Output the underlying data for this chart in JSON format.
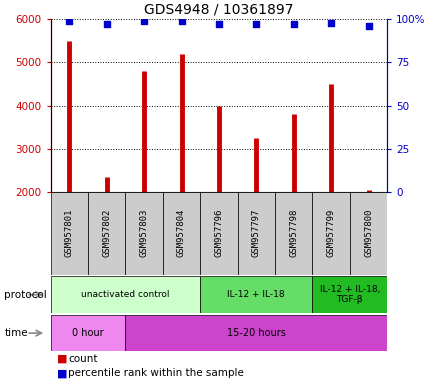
{
  "title": "GDS4948 / 10361897",
  "samples": [
    "GSM957801",
    "GSM957802",
    "GSM957803",
    "GSM957804",
    "GSM957796",
    "GSM957797",
    "GSM957798",
    "GSM957799",
    "GSM957800"
  ],
  "counts": [
    5500,
    2350,
    4800,
    5200,
    4000,
    3250,
    3800,
    4500,
    2050
  ],
  "percentile_ranks": [
    99,
    97,
    99,
    99,
    97,
    97,
    97,
    98,
    96
  ],
  "ylim_left": [
    2000,
    6000
  ],
  "ylim_right": [
    0,
    100
  ],
  "left_yticks": [
    2000,
    3000,
    4000,
    5000,
    6000
  ],
  "right_yticks": [
    0,
    25,
    50,
    75,
    100
  ],
  "bar_color": "#cc0000",
  "dot_color": "#0000cc",
  "grid_color": "#000000",
  "protocol_groups": [
    {
      "label": "unactivated control",
      "start": 0,
      "end": 4,
      "color": "#ccffcc"
    },
    {
      "label": "IL-12 + IL-18",
      "start": 4,
      "end": 7,
      "color": "#66dd66"
    },
    {
      "label": "IL-12 + IL-18,\nTGF-β",
      "start": 7,
      "end": 9,
      "color": "#22bb22"
    }
  ],
  "time_groups": [
    {
      "label": "0 hour",
      "start": 0,
      "end": 2,
      "color": "#ee88ee"
    },
    {
      "label": "15-20 hours",
      "start": 2,
      "end": 9,
      "color": "#cc44cc"
    }
  ],
  "protocol_label": "protocol",
  "time_label": "time",
  "legend_count_label": "count",
  "legend_percentile_label": "percentile rank within the sample",
  "title_fontsize": 10,
  "axis_label_color_left": "#cc0000",
  "axis_label_color_right": "#0000cc",
  "sample_box_color": "#cccccc",
  "right_ytick_labels": [
    "0",
    "25",
    "50",
    "75",
    "100%"
  ]
}
